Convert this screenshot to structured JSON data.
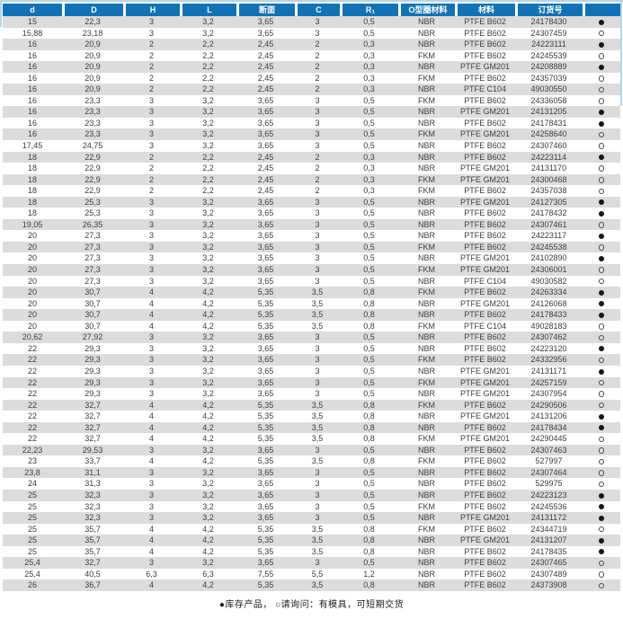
{
  "page": {
    "footer_legend": "●库存产品， ○请询问：有模具，可短期交货"
  },
  "colors": {
    "header_bg": "#1173b5",
    "header_text": "#ffffff",
    "row_alt_bg": "#dcdcdc",
    "frame_border": "#b5d6ec",
    "body_text": "#3d3d3d",
    "stock_filled": "#161616"
  },
  "legend": {
    "filled_symbol": "●",
    "open_symbol": "○"
  },
  "table": {
    "columns": [
      {
        "key": "d",
        "label": "d"
      },
      {
        "key": "D",
        "label": "D"
      },
      {
        "key": "H",
        "label": "H"
      },
      {
        "key": "L",
        "label": "L"
      },
      {
        "key": "cross-section",
        "label": "断面"
      },
      {
        "key": "C",
        "label": "C"
      },
      {
        "key": "R1",
        "label": "R₁"
      },
      {
        "key": "oring-material",
        "label": "O型圈材料"
      },
      {
        "key": "material",
        "label": "材料"
      },
      {
        "key": "order-no",
        "label": "订货号"
      },
      {
        "key": "stock",
        "label": ""
      }
    ],
    "rows": [
      [
        "15",
        "22,3",
        "3",
        "3,2",
        "3,65",
        "3",
        "0,5",
        "NBR",
        "PTFE B602",
        "24178430",
        "filled"
      ],
      [
        "15,88",
        "23,18",
        "3",
        "3,2",
        "3,65",
        "3",
        "0,5",
        "NBR",
        "PTFE B602",
        "24307459",
        "open"
      ],
      [
        "16",
        "20,9",
        "2",
        "2,2",
        "2,45",
        "2",
        "0,3",
        "NBR",
        "PTFE B602",
        "24223111",
        "filled"
      ],
      [
        "16",
        "20,9",
        "2",
        "2,2",
        "2,45",
        "2",
        "0,3",
        "FKM",
        "PTFE B602",
        "24245539",
        "open"
      ],
      [
        "16",
        "20,9",
        "2",
        "2,2",
        "2,45",
        "2",
        "0,3",
        "NBR",
        "PTFE GM201",
        "24208889",
        "filled"
      ],
      [
        "16",
        "20,9",
        "2",
        "2,2",
        "2,45",
        "2",
        "0,3",
        "FKM",
        "PTFE B602",
        "24357039",
        "open"
      ],
      [
        "16",
        "20,9",
        "2",
        "2,2",
        "2,45",
        "2",
        "0,3",
        "NBR",
        "PTFE C104",
        "49030550",
        "open"
      ],
      [
        "16",
        "23,3",
        "3",
        "3,2",
        "3,65",
        "3",
        "0,5",
        "FKM",
        "PTFE B602",
        "24336058",
        "open"
      ],
      [
        "16",
        "23,3",
        "3",
        "3,2",
        "3,65",
        "3",
        "0,5",
        "NBR",
        "PTFE GM201",
        "24131205",
        "filled"
      ],
      [
        "16",
        "23,3",
        "3",
        "3,2",
        "3,65",
        "3",
        "0,5",
        "NBR",
        "PTFE B602",
        "24178431",
        "filled"
      ],
      [
        "16",
        "23,3",
        "3",
        "3,2",
        "3,65",
        "3",
        "0,5",
        "FKM",
        "PTFE GM201",
        "24258640",
        "open"
      ],
      [
        "17,45",
        "24,75",
        "3",
        "3,2",
        "3,65",
        "3",
        "0,5",
        "NBR",
        "PTFE B602",
        "24307460",
        "open"
      ],
      [
        "18",
        "22,9",
        "2",
        "2,2",
        "2,45",
        "2",
        "0,3",
        "NBR",
        "PTFE B602",
        "24223114",
        "filled"
      ],
      [
        "18",
        "22,9",
        "2",
        "2,2",
        "2,45",
        "2",
        "0,3",
        "NBR",
        "PTFE GM201",
        "24131170",
        "open"
      ],
      [
        "18",
        "22,9",
        "2",
        "2,2",
        "2,45",
        "2",
        "0,3",
        "FKM",
        "PTFE GM201",
        "24300468",
        "open"
      ],
      [
        "18",
        "22,9",
        "2",
        "2,2",
        "2,45",
        "2",
        "0,3",
        "FKM",
        "PTFE B602",
        "24357038",
        "open"
      ],
      [
        "18",
        "25,3",
        "3",
        "3,2",
        "3,65",
        "3",
        "0,5",
        "NBR",
        "PTFE GM201",
        "24127305",
        "filled"
      ],
      [
        "18",
        "25,3",
        "3",
        "3,2",
        "3,65",
        "3",
        "0,5",
        "NBR",
        "PTFE B602",
        "24178432",
        "filled"
      ],
      [
        "19,05",
        "26,35",
        "3",
        "3,2",
        "3,65",
        "3",
        "0,5",
        "NBR",
        "PTFE B602",
        "24307461",
        "open"
      ],
      [
        "20",
        "27,3",
        "3",
        "3,2",
        "3,65",
        "3",
        "0,5",
        "NBR",
        "PTFE B602",
        "24223117",
        "filled"
      ],
      [
        "20",
        "27,3",
        "3",
        "3,2",
        "3,65",
        "3",
        "0,5",
        "FKM",
        "PTFE B602",
        "24245538",
        "open"
      ],
      [
        "20",
        "27,3",
        "3",
        "3,2",
        "3,65",
        "3",
        "0,5",
        "NBR",
        "PTFE GM201",
        "24102890",
        "filled"
      ],
      [
        "20",
        "27,3",
        "3",
        "3,2",
        "3,65",
        "3",
        "0,5",
        "FKM",
        "PTFE GM201",
        "24306001",
        "open"
      ],
      [
        "20",
        "27,3",
        "3",
        "3,2",
        "3,65",
        "3",
        "0,5",
        "NBR",
        "PTFE C104",
        "49030582",
        "open"
      ],
      [
        "20",
        "30,7",
        "4",
        "4,2",
        "5,35",
        "3,5",
        "0,8",
        "FKM",
        "PTFE B602",
        "24263334",
        "filled"
      ],
      [
        "20",
        "30,7",
        "4",
        "4,2",
        "5,35",
        "3,5",
        "0,8",
        "NBR",
        "PTFE GM201",
        "24126068",
        "filled"
      ],
      [
        "20",
        "30,7",
        "4",
        "4,2",
        "5,35",
        "3,5",
        "0,8",
        "NBR",
        "PTFE B602",
        "24178433",
        "filled"
      ],
      [
        "20",
        "30,7",
        "4",
        "4,2",
        "5,35",
        "3,5",
        "0,8",
        "FKM",
        "PTFE C104",
        "49028183",
        "open"
      ],
      [
        "20,62",
        "27,92",
        "3",
        "3,2",
        "3,65",
        "3",
        "0,5",
        "NBR",
        "PTFE B602",
        "24307462",
        "open"
      ],
      [
        "22",
        "29,3",
        "3",
        "3,2",
        "3,65",
        "3",
        "0,5",
        "NBR",
        "PTFE B602",
        "24223120",
        "filled"
      ],
      [
        "22",
        "29,3",
        "3",
        "3,2",
        "3,65",
        "3",
        "0,5",
        "FKM",
        "PTFE B602",
        "24332956",
        "open"
      ],
      [
        "22",
        "29,3",
        "3",
        "3,2",
        "3,65",
        "3",
        "0,5",
        "NBR",
        "PTFE GM201",
        "24131171",
        "filled"
      ],
      [
        "22",
        "29,3",
        "3",
        "3,2",
        "3,65",
        "3",
        "0,5",
        "FKM",
        "PTFE GM201",
        "24257159",
        "open"
      ],
      [
        "22",
        "29,3",
        "3",
        "3,2",
        "3,65",
        "3",
        "0,5",
        "NBR",
        "PTFE GM201",
        "24307954",
        "open"
      ],
      [
        "22",
        "32,7",
        "4",
        "4,2",
        "5,35",
        "3,5",
        "0,8",
        "FKM",
        "PTFE B602",
        "24290506",
        "open"
      ],
      [
        "22",
        "32,7",
        "4",
        "4,2",
        "5,35",
        "3,5",
        "0,8",
        "NBR",
        "PTFE GM201",
        "24131206",
        "filled"
      ],
      [
        "22",
        "32,7",
        "4",
        "4,2",
        "5,35",
        "3,5",
        "0,8",
        "NBR",
        "PTFE B602",
        "24178434",
        "filled"
      ],
      [
        "22",
        "32,7",
        "4",
        "4,2",
        "5,35",
        "3,5",
        "0,8",
        "FKM",
        "PTFE GM201",
        "24290445",
        "open"
      ],
      [
        "22,23",
        "29,53",
        "3",
        "3,2",
        "3,65",
        "3",
        "0,5",
        "NBR",
        "PTFE B602",
        "24307463",
        "open"
      ],
      [
        "23",
        "33,7",
        "4",
        "4,2",
        "5,35",
        "3,5",
        "0,8",
        "FKM",
        "PTFE B602",
        "527997",
        "open"
      ],
      [
        "23,8",
        "31,1",
        "3",
        "3,2",
        "3,65",
        "3",
        "0,5",
        "NBR",
        "PTFE B602",
        "24307464",
        "open"
      ],
      [
        "24",
        "31,3",
        "3",
        "3,2",
        "3,65",
        "3",
        "0,5",
        "NBR",
        "PTFE B602",
        "529975",
        "open"
      ],
      [
        "25",
        "32,3",
        "3",
        "3,2",
        "3,65",
        "3",
        "0,5",
        "NBR",
        "PTFE B602",
        "24223123",
        "filled"
      ],
      [
        "25",
        "32,3",
        "3",
        "3,2",
        "3,65",
        "3",
        "0,5",
        "FKM",
        "PTFE B602",
        "24245536",
        "filled"
      ],
      [
        "25",
        "32,3",
        "3",
        "3,2",
        "3,65",
        "3",
        "0,5",
        "NBR",
        "PTFE GM201",
        "24131172",
        "filled"
      ],
      [
        "25",
        "35,7",
        "4",
        "4,2",
        "5,35",
        "3,5",
        "0,8",
        "FKM",
        "PTFE B602",
        "24344719",
        "open"
      ],
      [
        "25",
        "35,7",
        "4",
        "4,2",
        "5,35",
        "3,5",
        "0,8",
        "NBR",
        "PTFE GM201",
        "24131207",
        "filled"
      ],
      [
        "25",
        "35,7",
        "4",
        "4,2",
        "5,35",
        "3,5",
        "0,8",
        "NBR",
        "PTFE B602",
        "24178435",
        "filled"
      ],
      [
        "25,4",
        "32,7",
        "3",
        "3,2",
        "3,65",
        "3",
        "0,5",
        "NBR",
        "PTFE B602",
        "24307465",
        "open"
      ],
      [
        "25,4",
        "40,5",
        "6,3",
        "6,3",
        "7,55",
        "5,5",
        "1,2",
        "NBR",
        "PTFE B602",
        "24307489",
        "open"
      ],
      [
        "26",
        "36,7",
        "4",
        "4,2",
        "5,35",
        "3,5",
        "0,8",
        "NBR",
        "PTFE B602",
        "24373908",
        "open"
      ]
    ]
  }
}
